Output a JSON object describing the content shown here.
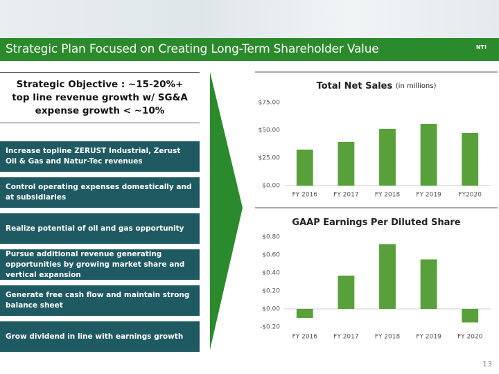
{
  "header": {
    "title": "Strategic Plan Focused on Creating Long-Term Shareholder Value",
    "logo": "NTI"
  },
  "objective": "Strategic Objective : ~15-20%+ top line revenue growth w/ SG&A expense growth < ~10%",
  "items": [
    "Increase topline ZERUST Industrial, Zerust Oil & Gas and Natur-Tec revenues",
    "Control operating expenses domestically and at subsidiaries",
    "Realize potential of oil and gas opportunity",
    "Pursue additional revenue  generating opportunities by growing market share and vertical expansion",
    "Generate free cash flow and maintain strong balance sheet",
    "Grow dividend in line with earnings growth"
  ],
  "page_number": "13",
  "chart_data": [
    {
      "type": "bar",
      "title": "Total Net Sales",
      "subtitle": "(in millions)",
      "categories": [
        "FY 2016",
        "FY 2017",
        "FY 2018",
        "FY 2019",
        "FY2020"
      ],
      "values": [
        32.5,
        39.4,
        51.3,
        55.6,
        47.5
      ],
      "color": "#58a03a",
      "ylim": [
        0,
        75
      ],
      "yticks": [
        {
          "value": 0,
          "label": "$0.00"
        },
        {
          "value": 25,
          "label": "$25.00"
        },
        {
          "value": 50,
          "label": "$50.00"
        },
        {
          "value": 75,
          "label": "$75.00"
        }
      ],
      "grid": false
    },
    {
      "type": "bar",
      "title": "GAAP Earnings Per Diluted Share",
      "categories": [
        "FY 2016",
        "FY 2017",
        "FY 2018",
        "FY 2019",
        "FY 2020"
      ],
      "values": [
        -0.1,
        0.37,
        0.72,
        0.55,
        -0.15
      ],
      "color": "#58a03a",
      "ylim": [
        -0.2,
        0.8
      ],
      "yticks": [
        {
          "value": -0.2,
          "label": "-$0.20"
        },
        {
          "value": 0,
          "label": "$0.00"
        },
        {
          "value": 0.2,
          "label": "$0.20"
        },
        {
          "value": 0.4,
          "label": "$0.40"
        },
        {
          "value": 0.6,
          "label": "$0.60"
        },
        {
          "value": 0.8,
          "label": "$0.80"
        }
      ],
      "grid": false
    }
  ]
}
